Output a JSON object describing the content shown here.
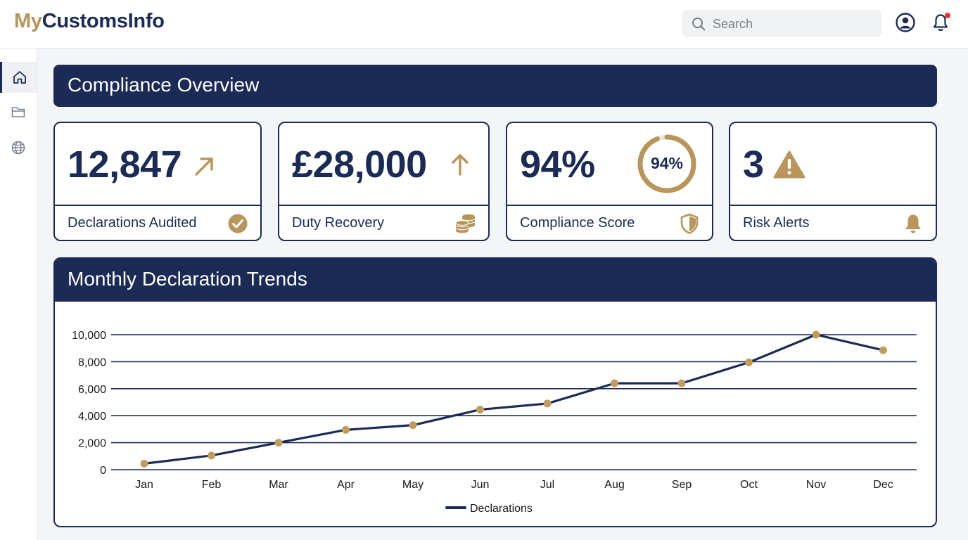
{
  "app": {
    "logo_prefix": "My",
    "logo_rest": "CustomsInfo"
  },
  "header": {
    "search_placeholder": "Search",
    "profile_icon": "user-circle-icon",
    "notification_icon": "bell-icon"
  },
  "sidebar": {
    "items": [
      {
        "icon": "home-icon",
        "active": true
      },
      {
        "icon": "folder-icon",
        "active": false
      },
      {
        "icon": "globe-icon",
        "active": false
      }
    ]
  },
  "overview": {
    "title": "Compliance Overview"
  },
  "cards": [
    {
      "value": "12,847",
      "label": "Declarations Audited",
      "trend_icon": "arrow-up-right-icon",
      "footer_icon": "check-circle-icon"
    },
    {
      "value": "£28,000",
      "label": "Duty Recovery",
      "trend_icon": "arrow-up-icon",
      "footer_icon": "coins-icon"
    },
    {
      "value": "94%",
      "label": "Compliance Score",
      "ring_label": "94%",
      "ring_percent": 94,
      "footer_icon": "shield-icon"
    },
    {
      "value": "3",
      "label": "Risk Alerts",
      "trend_icon": "warning-icon",
      "footer_icon": "bell-icon"
    }
  ],
  "colors": {
    "navy": "#1b2b55",
    "gold": "#b8955a",
    "alert_dot": "#e03a2f"
  },
  "chart_data": {
    "type": "line",
    "title": "Monthly Declaration Trends",
    "categories": [
      "Jan",
      "Feb",
      "Mar",
      "Apr",
      "May",
      "Jun",
      "Jul",
      "Aug",
      "Sep",
      "Oct",
      "Nov",
      "Dec"
    ],
    "series": [
      {
        "name": "Declarations",
        "values": [
          450,
          1050,
          2000,
          2950,
          3300,
          4450,
          4900,
          6400,
          6400,
          7950,
          10000,
          8850
        ]
      }
    ],
    "yticks": [
      "0",
      "2,000",
      "4,000",
      "6,000",
      "8,000",
      "10,000"
    ],
    "ylim": [
      0,
      10000
    ],
    "grid": true,
    "legend": "bottom-center",
    "line_color": "#1b2b55",
    "marker_color": "#c29b5e"
  }
}
